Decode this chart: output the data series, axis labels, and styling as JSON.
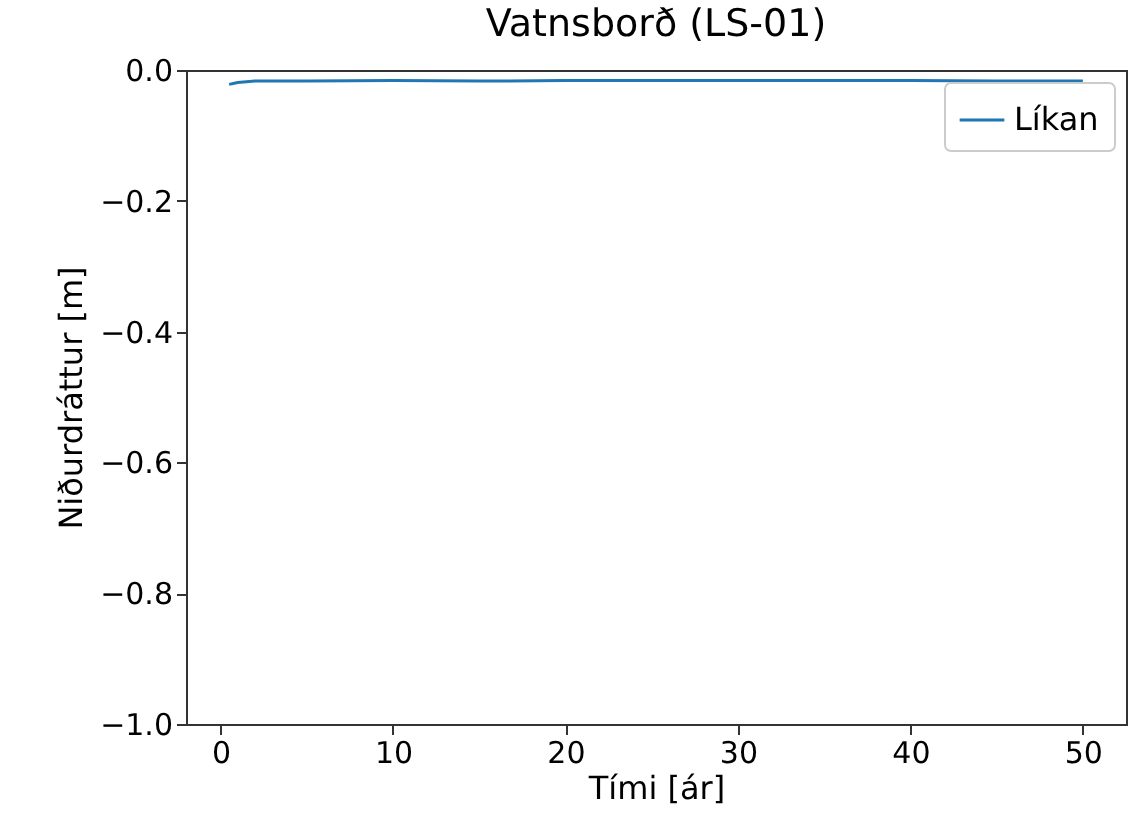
{
  "chart_data": {
    "type": "line",
    "title": "Vatnsborð (LS-01)",
    "xlabel": "Tími [ár]",
    "ylabel": "Niðurdráttur [m]",
    "x": [
      0.5,
      1,
      2,
      3,
      5,
      10,
      15,
      20,
      25,
      30,
      35,
      40,
      45,
      50
    ],
    "series": [
      {
        "name": "Líkan",
        "color": "#1f77b4",
        "values": [
          -0.022,
          -0.019,
          -0.017,
          -0.017,
          -0.017,
          -0.016,
          -0.017,
          -0.016,
          -0.016,
          -0.016,
          -0.016,
          -0.016,
          -0.017,
          -0.017
        ]
      }
    ],
    "xlim": [
      -2,
      52.5
    ],
    "xticks": [
      0,
      10,
      20,
      30,
      40,
      50
    ],
    "ylim": [
      -1.0,
      0.0
    ],
    "yticks": [
      {
        "value": -1.0,
        "label": "−1.0"
      },
      {
        "value": -0.8,
        "label": "−0.8"
      },
      {
        "value": -0.6,
        "label": "−0.6"
      },
      {
        "value": -0.4,
        "label": "−0.4"
      },
      {
        "value": -0.2,
        "label": "−0.2"
      },
      {
        "value": 0.0,
        "label": "0.0"
      }
    ],
    "legend": "top right",
    "grid": false,
    "marker": "none",
    "line_style": "solid"
  }
}
